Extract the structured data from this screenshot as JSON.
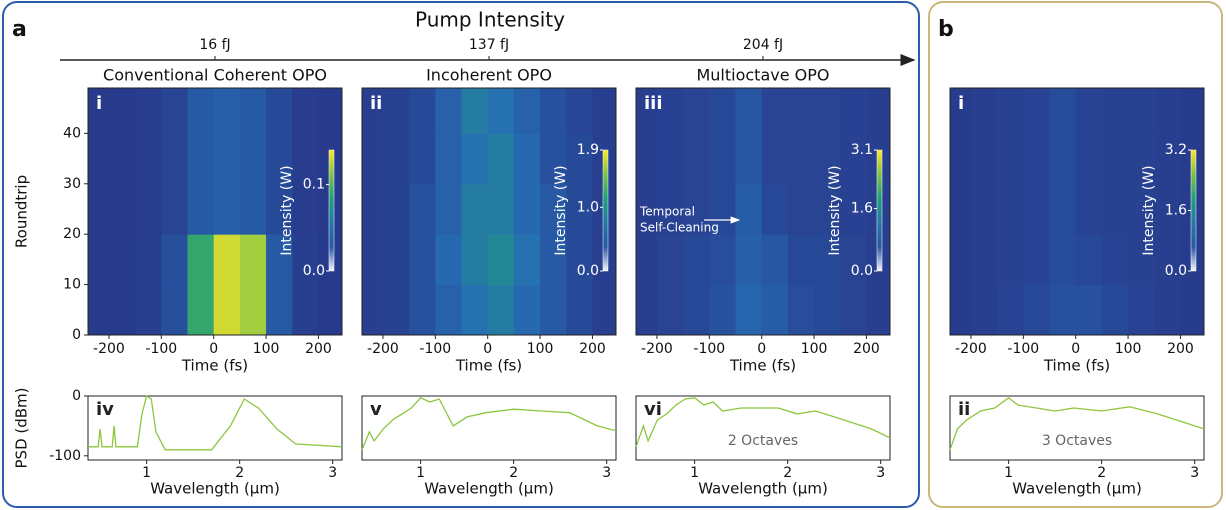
{
  "header": {
    "panel_a": "a",
    "panel_b": "b",
    "axis_title": "Pump Intensity",
    "pump_levels": [
      "16 fJ",
      "137 fJ",
      "204 fJ"
    ]
  },
  "chart_data": [
    {
      "type": "heatmap",
      "label": "i",
      "title": "Conventional Coherent OPO",
      "xlabel": "Time (fs)",
      "ylabel": "Roundtrip",
      "xlim": [
        -240,
        245
      ],
      "xticks": [
        -200,
        -100,
        0,
        100,
        200
      ],
      "ylim": [
        0,
        49
      ],
      "yticks": [
        0,
        10,
        20,
        30,
        40
      ],
      "x": [
        -225,
        -175,
        -125,
        -75,
        -25,
        25,
        75,
        125,
        175,
        225
      ],
      "y": [
        5,
        15,
        25,
        35,
        45
      ],
      "z": [
        [
          0,
          0,
          0.005,
          0.02,
          0.09,
          0.13,
          0.12,
          0.03,
          0.005,
          0
        ],
        [
          0,
          0,
          0.005,
          0.02,
          0.09,
          0.13,
          0.12,
          0.03,
          0.005,
          0
        ],
        [
          0,
          0,
          0.003,
          0.01,
          0.03,
          0.035,
          0.03,
          0.015,
          0.003,
          0
        ],
        [
          0,
          0,
          0.003,
          0.01,
          0.03,
          0.035,
          0.03,
          0.015,
          0.003,
          0
        ],
        [
          0,
          0,
          0.003,
          0.01,
          0.03,
          0.035,
          0.03,
          0.015,
          0.003,
          0
        ]
      ],
      "colorbar": {
        "label": "Intensity (W)",
        "lim": [
          0,
          0.14
        ],
        "ticks": [
          {
            "value": 0,
            "label": "0.0"
          },
          0.1
        ]
      }
    },
    {
      "type": "heatmap",
      "label": "ii",
      "title": "Incoherent OPO",
      "xlabel": "Time (fs)",
      "xlim": [
        -240,
        245
      ],
      "xticks": [
        -200,
        -100,
        0,
        100,
        200
      ],
      "ylim": [
        0,
        49
      ],
      "x": [
        -225,
        -175,
        -125,
        -75,
        -25,
        25,
        75,
        125,
        175,
        225
      ],
      "y": [
        5,
        15,
        25,
        35,
        45
      ],
      "z": [
        [
          0.05,
          0.1,
          0.3,
          0.5,
          0.7,
          0.8,
          0.6,
          0.4,
          0.2,
          0.05
        ],
        [
          0.05,
          0.1,
          0.3,
          0.6,
          0.8,
          0.9,
          0.7,
          0.4,
          0.2,
          0.05
        ],
        [
          0.05,
          0.1,
          0.3,
          0.5,
          0.8,
          0.8,
          0.6,
          0.4,
          0.2,
          0.05
        ],
        [
          0.05,
          0.1,
          0.2,
          0.5,
          0.7,
          0.8,
          0.6,
          0.3,
          0.2,
          0.05
        ],
        [
          0.05,
          0.1,
          0.2,
          0.5,
          0.8,
          0.7,
          0.5,
          0.3,
          0.15,
          0.05
        ]
      ],
      "colorbar": {
        "label": "Intensity (W)",
        "lim": [
          0,
          1.9
        ],
        "ticks": [
          {
            "value": 0,
            "label": "0.0"
          },
          {
            "value": 1,
            "label": "1.0"
          },
          1.9
        ]
      }
    },
    {
      "type": "heatmap",
      "label": "iii",
      "title": "Multioctave OPO",
      "xlabel": "Time (fs)",
      "xlim": [
        -240,
        245
      ],
      "xticks": [
        -200,
        -100,
        0,
        100,
        200
      ],
      "ylim": [
        0,
        49
      ],
      "x": [
        -225,
        -175,
        -125,
        -75,
        -25,
        25,
        75,
        125,
        175,
        225
      ],
      "y": [
        5,
        15,
        25,
        35,
        45
      ],
      "z": [
        [
          0.1,
          0.2,
          0.3,
          0.5,
          0.9,
          0.7,
          0.4,
          0.3,
          0.2,
          0.1
        ],
        [
          0.1,
          0.2,
          0.3,
          0.4,
          0.8,
          0.6,
          0.3,
          0.3,
          0.2,
          0.1
        ],
        [
          0.1,
          0.15,
          0.2,
          0.3,
          0.7,
          0.3,
          0.2,
          0.2,
          0.15,
          0.1
        ],
        [
          0.1,
          0.15,
          0.2,
          0.3,
          0.6,
          0.2,
          0.2,
          0.2,
          0.15,
          0.1
        ],
        [
          0.1,
          0.15,
          0.2,
          0.3,
          0.6,
          0.2,
          0.2,
          0.2,
          0.15,
          0.1
        ]
      ],
      "annotation": [
        "Temporal",
        "Self-Cleaning"
      ],
      "colorbar": {
        "label": "Intensity (W)",
        "lim": [
          0,
          3.1
        ],
        "ticks": [
          {
            "value": 0,
            "label": "0.0"
          },
          1.6,
          3.1
        ]
      }
    },
    {
      "type": "heatmap",
      "label": "i",
      "xlabel": "Time (fs)",
      "xlim": [
        -240,
        245
      ],
      "xticks": [
        -200,
        -100,
        0,
        100,
        200
      ],
      "ylim": [
        0,
        49
      ],
      "x": [
        -225,
        -175,
        -125,
        -75,
        -25,
        25,
        75,
        125,
        175,
        225
      ],
      "y": [
        5,
        15,
        25,
        35,
        45
      ],
      "z": [
        [
          0.05,
          0.1,
          0.2,
          0.3,
          0.5,
          0.5,
          0.3,
          0.2,
          0.1,
          0.05
        ],
        [
          0.05,
          0.1,
          0.15,
          0.2,
          0.4,
          0.3,
          0.2,
          0.15,
          0.1,
          0.05
        ],
        [
          0.05,
          0.1,
          0.15,
          0.2,
          0.4,
          0.2,
          0.15,
          0.15,
          0.1,
          0.05
        ],
        [
          0.05,
          0.1,
          0.15,
          0.2,
          0.4,
          0.2,
          0.15,
          0.15,
          0.1,
          0.05
        ],
        [
          0.05,
          0.1,
          0.15,
          0.2,
          0.4,
          0.2,
          0.15,
          0.15,
          0.1,
          0.05
        ]
      ],
      "colorbar": {
        "label": "Intensity (W)",
        "lim": [
          0,
          3.2
        ],
        "ticks": [
          {
            "value": 0,
            "label": "0.0"
          },
          1.6,
          3.2
        ]
      }
    },
    {
      "type": "line",
      "label": "iv",
      "xlabel": "Wavelength (µm)",
      "ylabel": "PSD (dBm)",
      "xlim": [
        0.37,
        3.1
      ],
      "xticks": [
        1,
        2,
        3
      ],
      "ylim": [
        -107,
        0
      ],
      "yticks": [
        0,
        -100
      ],
      "color": "#8dc63f",
      "x": [
        0.37,
        0.48,
        0.5,
        0.52,
        0.63,
        0.65,
        0.67,
        0.9,
        0.95,
        1.0,
        1.05,
        1.1,
        1.2,
        1.7,
        1.9,
        2.05,
        2.2,
        2.4,
        2.6,
        3.1
      ],
      "values": [
        -85,
        -85,
        -55,
        -85,
        -85,
        -50,
        -85,
        -85,
        -30,
        0,
        -5,
        -60,
        -90,
        -90,
        -50,
        -5,
        -20,
        -55,
        -80,
        -85
      ]
    },
    {
      "type": "line",
      "label": "v",
      "xlabel": "Wavelength (µm)",
      "xlim": [
        0.37,
        3.1
      ],
      "xticks": [
        1,
        2,
        3
      ],
      "ylim": [
        -107,
        0
      ],
      "color": "#8dc63f",
      "x": [
        0.37,
        0.45,
        0.5,
        0.6,
        0.7,
        0.8,
        0.9,
        1.0,
        1.1,
        1.2,
        1.35,
        1.5,
        1.7,
        2.0,
        2.3,
        2.6,
        2.9,
        3.1
      ],
      "values": [
        -90,
        -60,
        -75,
        -55,
        -40,
        -30,
        -20,
        -3,
        -10,
        -5,
        -50,
        -35,
        -28,
        -22,
        -25,
        -28,
        -50,
        -58
      ]
    },
    {
      "type": "line",
      "label": "vi",
      "xlabel": "Wavelength (µm)",
      "annotation": "2 Octaves",
      "xlim": [
        0.37,
        3.1
      ],
      "xticks": [
        1,
        2,
        3
      ],
      "ylim": [
        -107,
        0
      ],
      "color": "#8dc63f",
      "x": [
        0.37,
        0.45,
        0.5,
        0.6,
        0.7,
        0.8,
        0.9,
        1.0,
        1.1,
        1.2,
        1.3,
        1.5,
        1.7,
        1.9,
        2.1,
        2.3,
        2.5,
        2.7,
        2.9,
        3.1
      ],
      "values": [
        -85,
        -50,
        -75,
        -40,
        -30,
        -15,
        -5,
        -3,
        -15,
        -10,
        -25,
        -20,
        -20,
        -20,
        -30,
        -25,
        -35,
        -45,
        -55,
        -70
      ]
    },
    {
      "type": "line",
      "label": "ii",
      "xlabel": "Wavelength (µm)",
      "annotation": "3 Octaves",
      "xlim": [
        0.37,
        3.1
      ],
      "xticks": [
        1,
        2,
        3
      ],
      "ylim": [
        -107,
        0
      ],
      "color": "#8dc63f",
      "x": [
        0.37,
        0.45,
        0.55,
        0.7,
        0.85,
        1.0,
        1.1,
        1.3,
        1.5,
        1.7,
        2.0,
        2.3,
        2.6,
        2.9,
        3.1
      ],
      "values": [
        -90,
        -55,
        -40,
        -25,
        -20,
        -3,
        -15,
        -20,
        -25,
        -20,
        -25,
        -18,
        -30,
        -45,
        -55
      ]
    }
  ]
}
